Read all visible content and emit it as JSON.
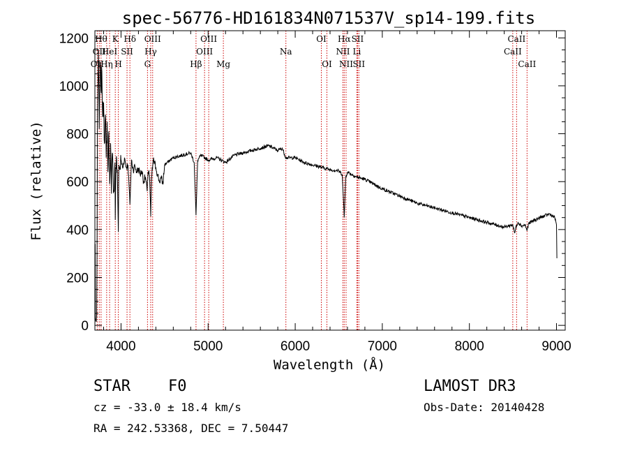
{
  "chart_data": {
    "type": "line",
    "title": "spec-56776-HD161834N071537V_sp14-199.fits",
    "xlabel": "Wavelength (Å)",
    "ylabel": "Flux (relative)",
    "xlim": [
      3700,
      9100
    ],
    "ylim": [
      -20,
      1230
    ],
    "xticks": [
      {
        "value": 4000,
        "label": "4000"
      },
      {
        "value": 5000,
        "label": "5000"
      },
      {
        "value": 6000,
        "label": "6000"
      },
      {
        "value": 7000,
        "label": "7000"
      },
      {
        "value": 8000,
        "label": "8000"
      },
      {
        "value": 9000,
        "label": "9000"
      }
    ],
    "yticks": [
      {
        "value": 0,
        "label": "0"
      },
      {
        "value": 200,
        "label": "200"
      },
      {
        "value": 400,
        "label": "400"
      },
      {
        "value": 600,
        "label": "600"
      },
      {
        "value": 800,
        "label": "800"
      },
      {
        "value": 1000,
        "label": "1000"
      },
      {
        "value": 1200,
        "label": "1200"
      }
    ],
    "line_color": "#cc0000",
    "spectrum_color": "#000000",
    "spectral_lines": [
      {
        "x": 3727,
        "label": "OII",
        "row": 2
      },
      {
        "x": 3750,
        "label": "OII",
        "row": 1
      },
      {
        "x": 3771,
        "label": "Hθ",
        "row": 0
      },
      {
        "x": 3835,
        "label": "Hη",
        "row": 2
      },
      {
        "x": 3869,
        "label": "HeI",
        "row": 1
      },
      {
        "x": 3934,
        "label": "K",
        "row": 0
      },
      {
        "x": 3969,
        "label": "H",
        "row": 2
      },
      {
        "x": 4069,
        "label": "SII",
        "row": 1
      },
      {
        "x": 4102,
        "label": "Hδ",
        "row": 0
      },
      {
        "x": 4304,
        "label": "G",
        "row": 2
      },
      {
        "x": 4341,
        "label": "Hγ",
        "row": 1
      },
      {
        "x": 4363,
        "label": "OIII",
        "row": 0
      },
      {
        "x": 4861,
        "label": "Hβ",
        "row": 2
      },
      {
        "x": 4959,
        "label": "OIII",
        "row": 1
      },
      {
        "x": 5007,
        "label": "OIII",
        "row": 0
      },
      {
        "x": 5175,
        "label": "Mg",
        "row": 2
      },
      {
        "x": 5893,
        "label": "Na",
        "row": 1
      },
      {
        "x": 6300,
        "label": "OI",
        "row": 0
      },
      {
        "x": 6364,
        "label": "OI",
        "row": 2
      },
      {
        "x": 6548,
        "label": "NII",
        "row": 1
      },
      {
        "x": 6563,
        "label": "Hα",
        "row": 0
      },
      {
        "x": 6584,
        "label": "NII",
        "row": 2
      },
      {
        "x": 6708,
        "label": "Li",
        "row": 1
      },
      {
        "x": 6716,
        "label": "SII",
        "row": 0
      },
      {
        "x": 6731,
        "label": "SII",
        "row": 2
      },
      {
        "x": 8498,
        "label": "CaII",
        "row": 1
      },
      {
        "x": 8542,
        "label": "CaII",
        "row": 0
      },
      {
        "x": 8662,
        "label": "CaII",
        "row": 2
      }
    ],
    "spectrum": {
      "x": [
        3700,
        3703,
        3706,
        3710,
        3715,
        3720,
        3725,
        3730,
        3740,
        3750,
        3760,
        3770,
        3780,
        3790,
        3800,
        3810,
        3820,
        3830,
        3840,
        3850,
        3860,
        3870,
        3880,
        3890,
        3900,
        3910,
        3920,
        3930,
        3934,
        3940,
        3950,
        3960,
        3969,
        3975,
        3985,
        4000,
        4020,
        4040,
        4060,
        4080,
        4102,
        4120,
        4140,
        4160,
        4180,
        4200,
        4220,
        4240,
        4260,
        4280,
        4300,
        4310,
        4320,
        4330,
        4341,
        4350,
        4370,
        4400,
        4420,
        4440,
        4460,
        4480,
        4500,
        4600,
        4700,
        4800,
        4840,
        4861,
        4880,
        4920,
        5000,
        5100,
        5200,
        5300,
        5400,
        5500,
        5600,
        5700,
        5800,
        5850,
        5893,
        5950,
        6000,
        6100,
        6200,
        6300,
        6400,
        6500,
        6540,
        6563,
        6580,
        6600,
        6700,
        6800,
        6900,
        7000,
        7200,
        7400,
        7600,
        7800,
        8000,
        8200,
        8400,
        8498,
        8520,
        8542,
        8560,
        8600,
        8640,
        8662,
        8680,
        8750,
        8850,
        8920,
        8980,
        9000,
        9005
      ],
      "y": [
        60,
        340,
        30,
        20,
        15,
        40,
        300,
        900,
        1150,
        820,
        1100,
        980,
        1060,
        870,
        930,
        760,
        880,
        700,
        850,
        640,
        810,
        590,
        760,
        550,
        720,
        610,
        560,
        680,
        440,
        660,
        690,
        580,
        390,
        670,
        650,
        690,
        655,
        700,
        660,
        670,
        505,
        690,
        650,
        665,
        640,
        655,
        630,
        645,
        600,
        620,
        560,
        640,
        645,
        600,
        455,
        610,
        690,
        660,
        630,
        600,
        615,
        590,
        670,
        700,
        710,
        720,
        680,
        460,
        690,
        710,
        690,
        700,
        680,
        710,
        720,
        730,
        740,
        750,
        730,
        740,
        700,
        700,
        700,
        680,
        670,
        660,
        650,
        645,
        630,
        450,
        620,
        640,
        620,
        610,
        590,
        570,
        540,
        510,
        490,
        470,
        450,
        430,
        410,
        420,
        385,
        420,
        430,
        415,
        420,
        395,
        425,
        440,
        455,
        465,
        450,
        420,
        280
      ]
    }
  },
  "info": {
    "object_type": "STAR",
    "subclass": "F0",
    "survey": "LAMOST DR3",
    "cz": "cz = -33.0 ± 18.4 km/s",
    "obs_date": "Obs-Date: 20140428",
    "coords": "RA = 242.53368, DEC =   7.50447"
  }
}
